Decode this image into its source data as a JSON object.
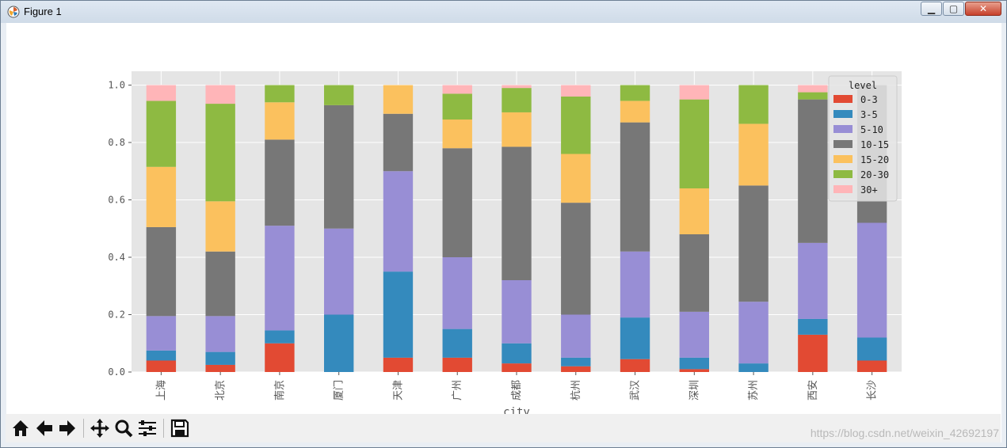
{
  "window": {
    "title": "Figure 1",
    "buttons": [
      "minimize",
      "maximize",
      "close"
    ]
  },
  "chart_data": {
    "type": "bar",
    "stacked": true,
    "title": "",
    "xlabel": "city",
    "ylabel": "",
    "ylim": [
      0,
      1.05
    ],
    "yticks": [
      "0.0",
      "0.2",
      "0.4",
      "0.6",
      "0.8",
      "1.0"
    ],
    "categories": [
      "上海",
      "北京",
      "南京",
      "厦门",
      "天津",
      "广州",
      "成都",
      "杭州",
      "武汉",
      "深圳",
      "苏州",
      "西安",
      "长沙"
    ],
    "legend_title": "level",
    "legend_position": "top-right",
    "series": [
      {
        "name": "0-3",
        "color": "#E24A33",
        "values": [
          0.04,
          0.025,
          0.1,
          0.0,
          0.05,
          0.05,
          0.03,
          0.02,
          0.045,
          0.01,
          0.0,
          0.13,
          0.04
        ]
      },
      {
        "name": "3-5",
        "color": "#348ABD",
        "values": [
          0.035,
          0.045,
          0.045,
          0.2,
          0.3,
          0.1,
          0.07,
          0.03,
          0.145,
          0.04,
          0.03,
          0.055,
          0.08
        ]
      },
      {
        "name": "5-10",
        "color": "#988ED5",
        "values": [
          0.12,
          0.125,
          0.365,
          0.3,
          0.35,
          0.25,
          0.22,
          0.15,
          0.23,
          0.16,
          0.215,
          0.265,
          0.4
        ]
      },
      {
        "name": "10-15",
        "color": "#777777",
        "values": [
          0.31,
          0.225,
          0.3,
          0.43,
          0.2,
          0.38,
          0.465,
          0.39,
          0.45,
          0.27,
          0.405,
          0.5,
          0.48
        ]
      },
      {
        "name": "15-20",
        "color": "#FBC15E",
        "values": [
          0.21,
          0.175,
          0.13,
          0.0,
          0.1,
          0.1,
          0.12,
          0.17,
          0.075,
          0.16,
          0.215,
          0.0,
          0.0
        ]
      },
      {
        "name": "20-30",
        "color": "#8EBA42",
        "values": [
          0.23,
          0.34,
          0.06,
          0.07,
          0.0,
          0.09,
          0.085,
          0.2,
          0.055,
          0.31,
          0.135,
          0.025,
          0.0
        ]
      },
      {
        "name": "30+",
        "color": "#FFB5B8",
        "values": [
          0.055,
          0.065,
          0.0,
          0.0,
          0.0,
          0.03,
          0.01,
          0.04,
          0.0,
          0.05,
          0.0,
          0.025,
          0.0
        ]
      }
    ]
  },
  "toolbar": {
    "icons": [
      "home-icon",
      "back-icon",
      "forward-icon",
      "pan-icon",
      "zoom-icon",
      "configure-subplots-icon",
      "save-icon"
    ]
  },
  "watermark": "https://blog.csdn.net/weixin_42692197"
}
